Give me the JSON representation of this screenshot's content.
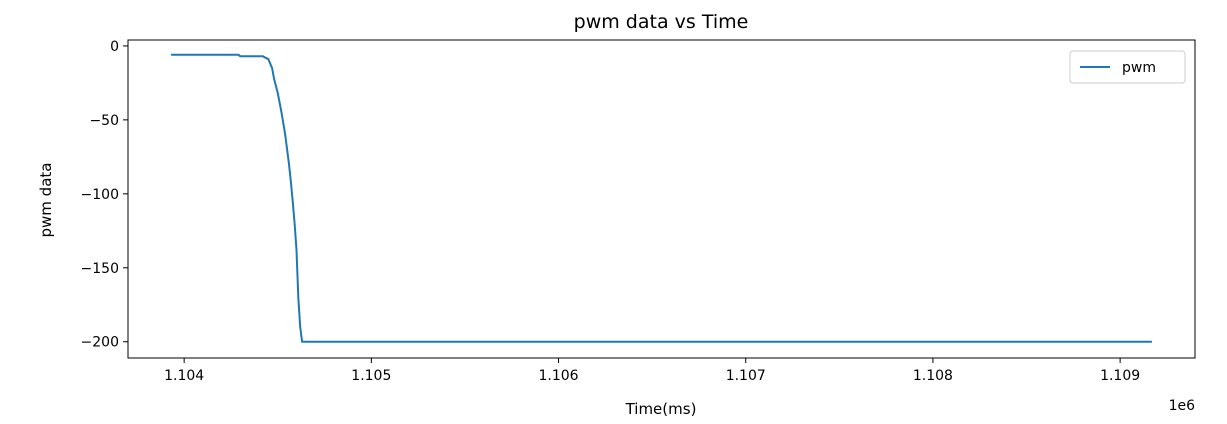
{
  "chart_data": {
    "type": "line",
    "title": "pwm data vs Time",
    "xlabel": "Time(ms)",
    "ylabel": "pwm data",
    "x_offset_label": "1e6",
    "xlim": [
      1103.7,
      1109.4
    ],
    "ylim": [
      -211,
      4
    ],
    "x_ticks": [
      1104,
      1105,
      1106,
      1107,
      1108,
      1109
    ],
    "x_tick_labels": [
      "1.104",
      "1.105",
      "1.106",
      "1.107",
      "1.108",
      "1.109"
    ],
    "y_ticks": [
      0,
      -50,
      -100,
      -150,
      -200
    ],
    "y_tick_labels": [
      "0",
      "−50",
      "−100",
      "−150",
      "−200"
    ],
    "legend": {
      "placement": "top-right"
    },
    "grid": false,
    "series": [
      {
        "name": "pwm",
        "color": "#1f77b4",
        "x": [
          1103.93,
          1104.29,
          1104.3,
          1104.42,
          1104.45,
          1104.47,
          1104.48,
          1104.5,
          1104.52,
          1104.54,
          1104.56,
          1104.57,
          1104.58,
          1104.59,
          1104.6,
          1104.61,
          1104.62,
          1104.63,
          1109.17
        ],
        "values": [
          -6,
          -6,
          -7,
          -7,
          -9,
          -15,
          -22,
          -32,
          -45,
          -60,
          -80,
          -92,
          -105,
          -120,
          -138,
          -170,
          -190,
          -200,
          -200
        ]
      }
    ]
  }
}
